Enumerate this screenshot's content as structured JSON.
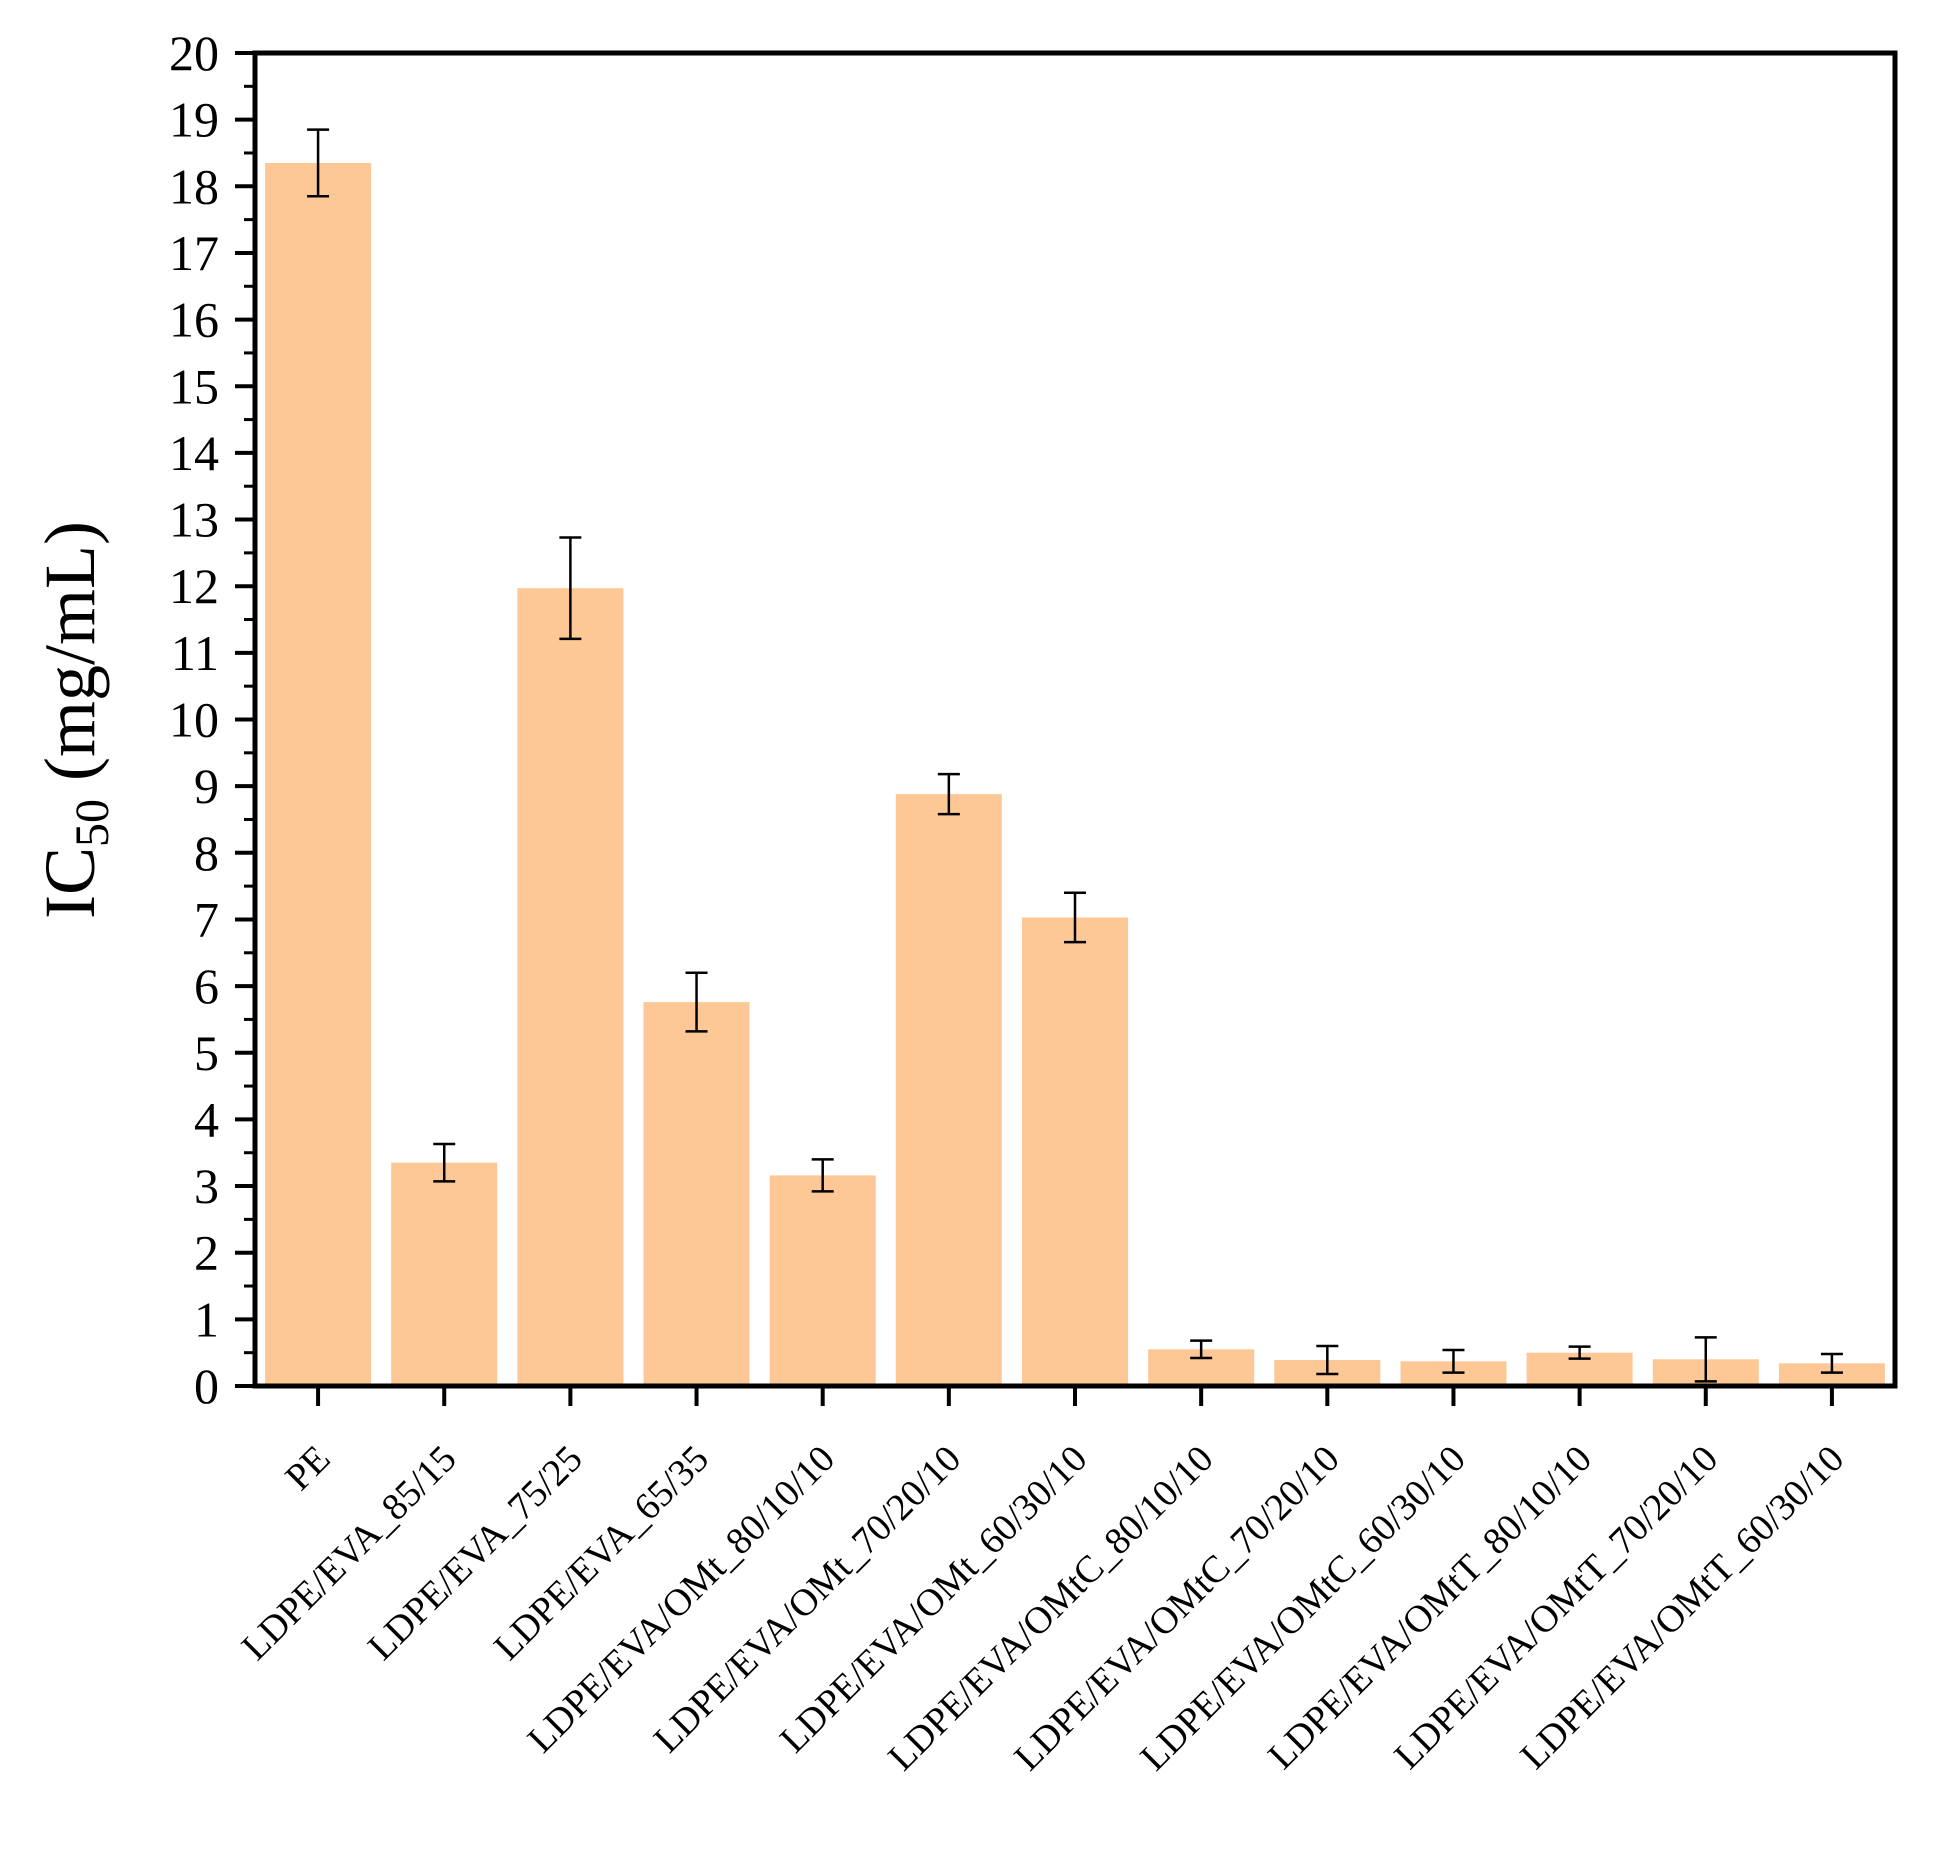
{
  "chart_data": {
    "type": "bar",
    "title": "",
    "xlabel": "",
    "ylabel": {
      "main": "IC",
      "subscript": "50",
      "units": " (mg/mL)"
    },
    "ylim": [
      0,
      20
    ],
    "yticks": [
      0,
      1,
      2,
      3,
      4,
      5,
      6,
      7,
      8,
      9,
      10,
      11,
      12,
      13,
      14,
      15,
      16,
      17,
      18,
      19,
      20
    ],
    "grid": false,
    "bar_color": "#FDC895",
    "categories": [
      "PE",
      "LDPE/EVA_85/15",
      "LDPE/EVA_75/25",
      "LDPE/EVA_65/35",
      "LDPE/EVA/OMt_80/10/10",
      "LDPE/EVA/OMt_70/20/10",
      "LDPE/EVA/OMt_60/30/10",
      "LDPE/EVA/OMtC_80/10/10",
      "LDPE/EVA/OMtC_70/20/10",
      "LDPE/EVA/OMtC_60/30/10",
      "LDPE/EVA/OMtT_80/10/10",
      "LDPE/EVA/OMtT_70/20/10",
      "LDPE/EVA/OMtT_60/30/10"
    ],
    "values": [
      18.35,
      3.35,
      11.97,
      5.76,
      3.16,
      8.88,
      7.03,
      0.55,
      0.39,
      0.37,
      0.5,
      0.4,
      0.34
    ],
    "errors": [
      0.5,
      0.28,
      0.76,
      0.44,
      0.24,
      0.3,
      0.37,
      0.13,
      0.21,
      0.17,
      0.09,
      0.33,
      0.14
    ]
  }
}
